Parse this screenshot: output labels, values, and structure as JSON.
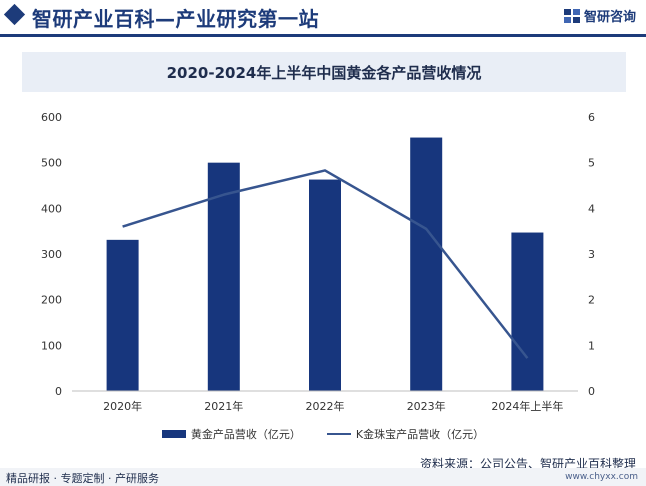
{
  "header": {
    "site_title": "智研产业百科—产业研究第一站",
    "brand_name": "智研咨询",
    "logo_icon": "zhiyan-logo-icon"
  },
  "chart_data": {
    "type": "bar",
    "title": "2020-2024年上半年中国黄金各产品营收情况",
    "categories": [
      "2020年",
      "2021年",
      "2022年",
      "2023年",
      "2024年上半年"
    ],
    "series": [
      {
        "name": "黄金产品营收（亿元）",
        "type": "bar",
        "axis": "left",
        "color": "#17367d",
        "values": [
          331,
          500,
          463,
          555,
          347
        ]
      },
      {
        "name": "K金珠宝产品营收（亿元）",
        "type": "line",
        "axis": "right",
        "color": "#37558f",
        "values": [
          3.6,
          4.3,
          4.83,
          3.55,
          0.72
        ]
      }
    ],
    "y_left": {
      "min": 0,
      "max": 600,
      "ticks": [
        "0",
        "100",
        "200",
        "300",
        "400",
        "500",
        "600"
      ]
    },
    "y_right": {
      "min": 0,
      "max": 6,
      "ticks": [
        "0",
        "1",
        "2",
        "3",
        "4",
        "5",
        "6"
      ]
    },
    "grid": false,
    "legend_position": "bottom"
  },
  "footer": {
    "source": "资料来源：公司公告、智研产业百科整理",
    "slogan": "精品研报 · 专题定制 · 产研服务",
    "url": "www.chyxx.com"
  }
}
